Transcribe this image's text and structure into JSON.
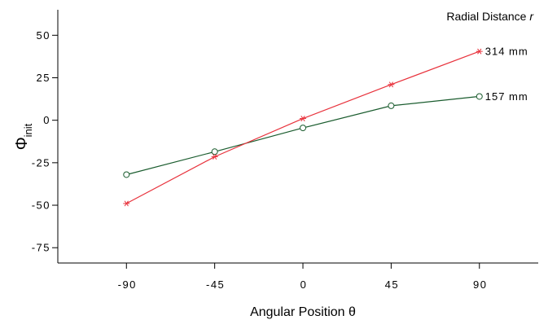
{
  "chart_data": {
    "type": "line",
    "xlabel": "Angular Position θ",
    "ylabel_main": "Φ",
    "ylabel_sub": "init",
    "legend": {
      "title_prefix": "Radial Distance ",
      "title_var": "r",
      "placement": "top-right"
    },
    "x_ticks": [
      -90,
      -45,
      0,
      45,
      90
    ],
    "x_tick_labels": [
      "-90",
      "-45",
      "0",
      "45",
      "90"
    ],
    "y_ticks": [
      50,
      25,
      0,
      -25,
      -50,
      -75
    ],
    "y_tick_labels": [
      "50",
      "25",
      "0",
      "-25",
      "-50",
      "-75"
    ],
    "xlim": [
      -125,
      120
    ],
    "ylim": [
      -84,
      65
    ],
    "grid": false,
    "x": [
      -90,
      -45,
      0,
      45,
      90
    ],
    "series": [
      {
        "name": "157 mm",
        "color": "#1a5c2e",
        "marker": "circle",
        "values": [
          -32,
          -18.5,
          -4.5,
          8.5,
          14
        ]
      },
      {
        "name": "314 mm",
        "color": "#e8323c",
        "marker": "star",
        "values": [
          -49,
          -21.5,
          1,
          21,
          40.5
        ]
      }
    ]
  }
}
